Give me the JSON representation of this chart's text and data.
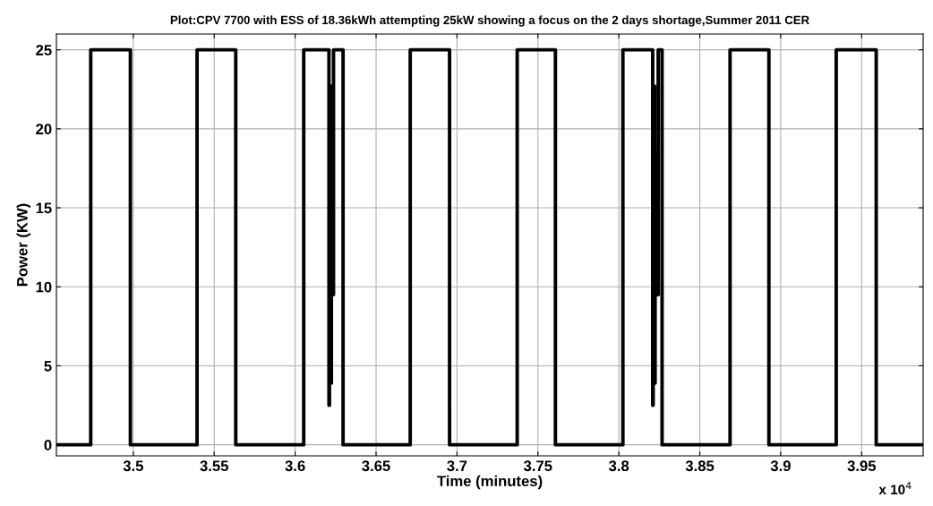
{
  "chart_data": {
    "type": "step",
    "title": "Plot:CPV 7700 with ESS of 18.36kWh attempting 25kW showing a focus on the 2 days shortage,Summer 2011 CER",
    "xlabel": "Time (minutes)",
    "ylabel": "Power (KW)",
    "annotations": [
      "x 10$^{4}$"
    ],
    "x": [
      3.4525,
      3.4737,
      3.4982,
      3.5394,
      3.5633,
      3.6053,
      3.6209,
      3.6212,
      3.6215,
      3.6218,
      3.6221,
      3.6224,
      3.6228,
      3.6237,
      3.6296,
      3.6711,
      3.6954,
      3.7372,
      3.7608,
      3.8025,
      3.8209,
      3.8212,
      3.8215,
      3.8218,
      3.8221,
      3.8224,
      3.8228,
      3.8243,
      3.8267,
      3.8687,
      3.8927,
      3.9343,
      3.959,
      3.988
    ],
    "values": [
      0,
      25,
      0,
      25,
      0,
      25,
      2.5,
      22.7,
      3.9,
      22.7,
      3.9,
      18.5,
      9.5,
      25,
      0,
      25,
      0,
      25,
      0,
      25,
      2.5,
      22.7,
      3.9,
      22.7,
      3.9,
      18.5,
      9.5,
      25,
      0,
      25,
      0,
      25,
      0,
      0
    ],
    "color": "#000000",
    "line_style": "solid",
    "marker": "none",
    "grid": true,
    "xlim": [
      3.4525,
      3.988
    ],
    "xticks": [
      3.5,
      3.55,
      3.6,
      3.65,
      3.7,
      3.75,
      3.8,
      3.85,
      3.9,
      3.95
    ],
    "ylim": [
      -0.7,
      26
    ],
    "yticks": [
      0,
      5,
      10,
      15,
      20,
      25
    ]
  }
}
